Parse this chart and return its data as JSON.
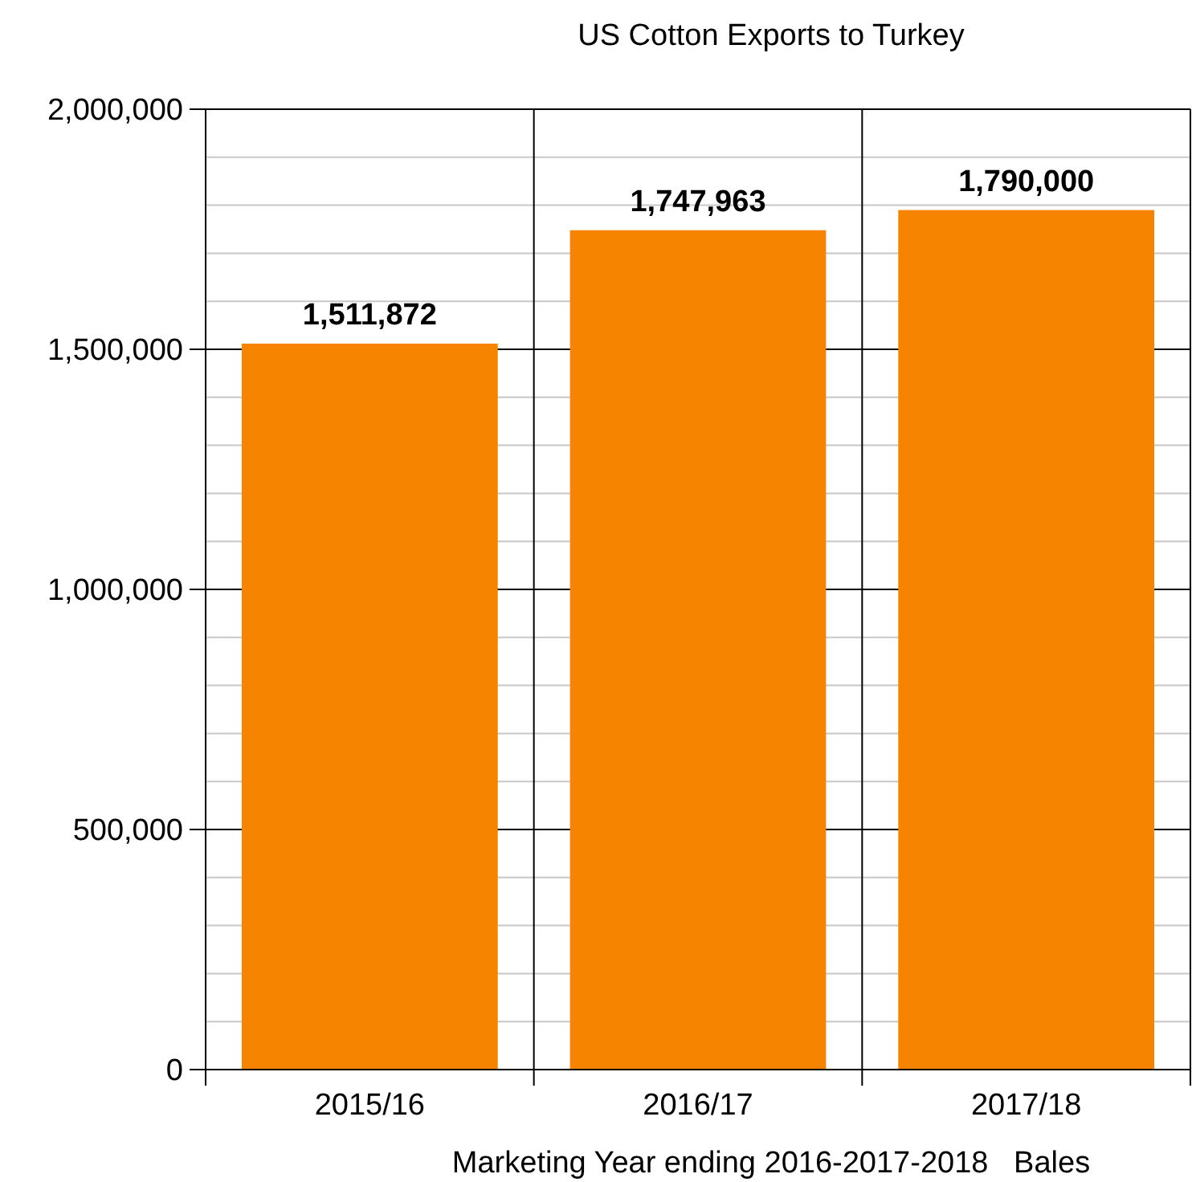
{
  "chart_data": {
    "type": "bar",
    "title": "US Cotton Exports to Turkey",
    "xlabel": "Marketing Year ending 2016-2017-2018   Bales",
    "categories": [
      "2015/16",
      "2016/17",
      "2017/18"
    ],
    "values": [
      1511872,
      1747963,
      1790000
    ],
    "value_labels": [
      "1,511,872",
      "1,747,963",
      "1,790,000"
    ],
    "color": "#f78400",
    "ylim": [
      0,
      2000000
    ],
    "yticks": [
      {
        "value": 0,
        "label": "0"
      },
      {
        "value": 100000,
        "label": null
      },
      {
        "value": 200000,
        "label": null
      },
      {
        "value": 300000,
        "label": null
      },
      {
        "value": 400000,
        "label": null
      },
      {
        "value": 500000,
        "label": "500,000"
      },
      {
        "value": 600000,
        "label": null
      },
      {
        "value": 700000,
        "label": null
      },
      {
        "value": 800000,
        "label": null
      },
      {
        "value": 900000,
        "label": null
      },
      {
        "value": 1000000,
        "label": "1,000,000"
      },
      {
        "value": 1100000,
        "label": null
      },
      {
        "value": 1200000,
        "label": null
      },
      {
        "value": 1300000,
        "label": null
      },
      {
        "value": 1400000,
        "label": null
      },
      {
        "value": 1500000,
        "label": "1,500,000"
      },
      {
        "value": 1600000,
        "label": null
      },
      {
        "value": 1700000,
        "label": null
      },
      {
        "value": 1800000,
        "label": null
      },
      {
        "value": 1900000,
        "label": null
      },
      {
        "value": 2000000,
        "label": "2,000,000"
      }
    ],
    "grid": true
  }
}
